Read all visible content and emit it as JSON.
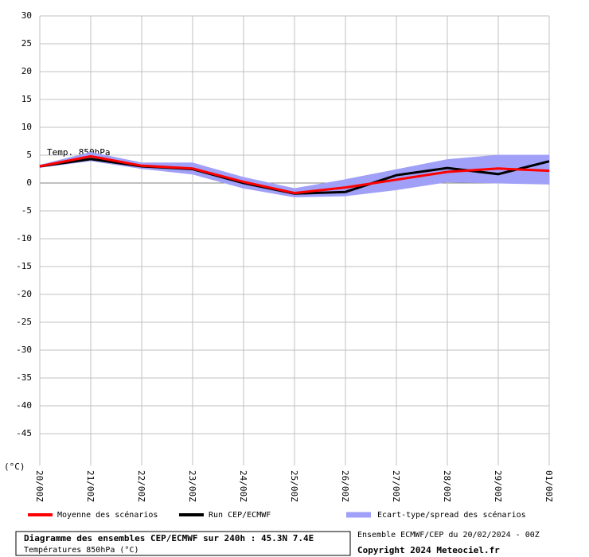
{
  "chart_data": {
    "type": "line",
    "annotation": "Temp. 850hPa",
    "y_label": "(°C)",
    "categories": [
      "20/00Z",
      "21/00Z",
      "22/00Z",
      "23/00Z",
      "24/00Z",
      "25/00Z",
      "26/00Z",
      "27/00Z",
      "28/00Z",
      "29/00Z",
      "01/00Z"
    ],
    "series": [
      {
        "name": "Moyenne des scénarios",
        "color": "#ff0000",
        "values": [
          3,
          4.8,
          3.1,
          2.6,
          0.2,
          -1.8,
          -0.8,
          0.6,
          2,
          2.6,
          2.2
        ]
      },
      {
        "name": "Run CEP/ECMWF",
        "color": "#000000",
        "values": [
          3,
          4.3,
          3.0,
          2.5,
          0.0,
          -1.9,
          -1.6,
          1.4,
          2.7,
          1.6,
          3.9
        ]
      },
      {
        "name": "Ecart-type/spread des scénarios",
        "color": "#a0a0f8",
        "upper": [
          3.2,
          5.5,
          3.6,
          3.6,
          1.0,
          -1.0,
          0.6,
          2.4,
          4.2,
          5.0,
          5.0
        ],
        "lower": [
          2.8,
          4.0,
          2.6,
          1.6,
          -0.9,
          -2.5,
          -2.3,
          -1.2,
          0.2,
          0.0,
          -0.2
        ]
      }
    ],
    "ylim": [
      -50,
      30
    ],
    "yticks": [
      30,
      25,
      20,
      15,
      10,
      5,
      0,
      -5,
      -10,
      -15,
      -20,
      -25,
      -30,
      -35,
      -40,
      -45
    ],
    "grid": true,
    "footer": {
      "title": "Diagramme des ensembles CEP/ECMWF sur 240h : 45.3N 7.4E",
      "subtitle": "Températures 850hPa (°C)",
      "run": "Ensemble ECMWF/CEP du 20/02/2024 - 00Z",
      "copyright": "Copyright 2024 Meteociel.fr"
    }
  }
}
